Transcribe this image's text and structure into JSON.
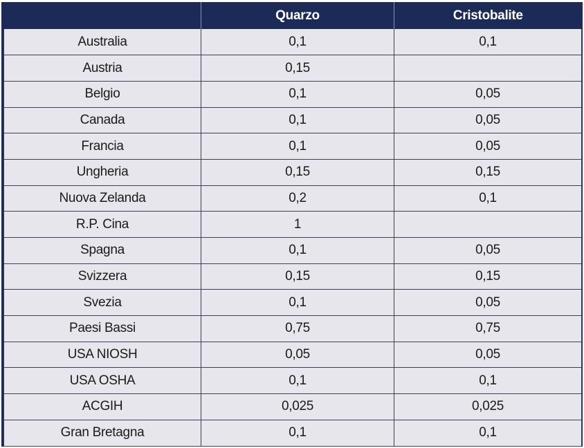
{
  "table": {
    "headers": [
      "",
      "Quarzo",
      "Cristobalite"
    ],
    "rows": [
      [
        "Australia",
        "0,1",
        "0,1"
      ],
      [
        "Austria",
        "0,15",
        ""
      ],
      [
        "Belgio",
        "0,1",
        "0,05"
      ],
      [
        "Canada",
        "0,1",
        "0,05"
      ],
      [
        "Francia",
        "0,1",
        "0,05"
      ],
      [
        "Ungheria",
        "0,15",
        "0,15"
      ],
      [
        "Nuova Zelanda",
        "0,2",
        "0,1"
      ],
      [
        "R.P. Cina",
        "1",
        ""
      ],
      [
        "Spagna",
        "0,1",
        "0,05"
      ],
      [
        "Svizzera",
        "0,15",
        "0,15"
      ],
      [
        "Svezia",
        "0,1",
        "0,05"
      ],
      [
        "Paesi Bassi",
        "0,75",
        "0,75"
      ],
      [
        "USA NIOSH",
        "0,05",
        "0,05"
      ],
      [
        "USA OSHA",
        "0,1",
        "0,1"
      ],
      [
        "ACGIH",
        "0,025",
        "0,025"
      ],
      [
        "Gran Bretagna",
        "0,1",
        "0,1"
      ]
    ]
  },
  "colors": {
    "header_bg": "#1b2a57",
    "header_text": "#ffffff",
    "cell_bg": "#e7e6ec",
    "cell_border": "#3a3f55"
  }
}
